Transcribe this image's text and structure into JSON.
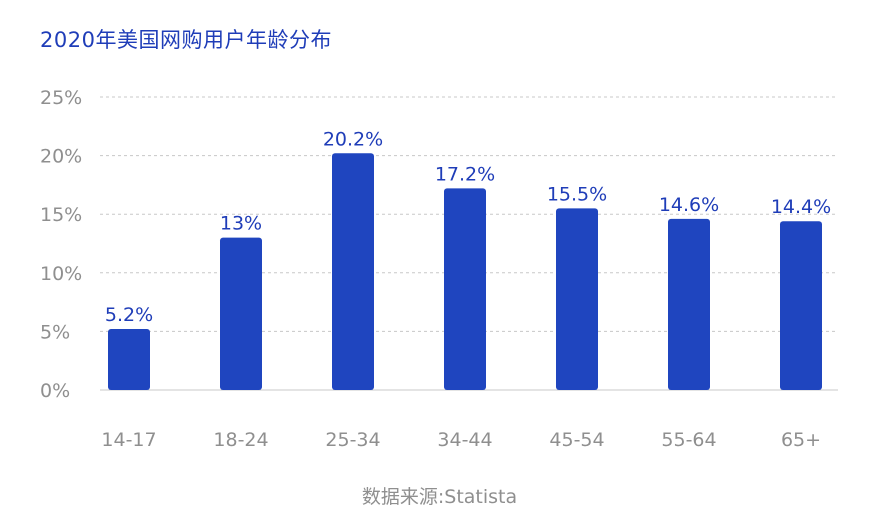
{
  "chart_data": {
    "type": "bar",
    "title": "2020年美国网购用户年龄分布",
    "categories": [
      "14-17",
      "18-24",
      "25-34",
      "34-44",
      "45-54",
      "55-64",
      "65+"
    ],
    "values": [
      5.2,
      13,
      20.2,
      17.2,
      15.5,
      14.6,
      14.4
    ],
    "data_labels": [
      "5.2%",
      "13%",
      "20.2%",
      "17.2%",
      "15.5%",
      "14.6%",
      "14.4%"
    ],
    "y_ticks": [
      0,
      5,
      10,
      15,
      20,
      25
    ],
    "y_tick_labels": [
      "0%",
      "5%",
      "10%",
      "15%",
      "20%",
      "25%"
    ],
    "ylim": [
      0,
      25
    ],
    "xlabel": "",
    "ylabel": "",
    "grid": true,
    "bar_color": "#1f45bf",
    "label_color": "#1f3db8",
    "source": "数据来源:Statista"
  }
}
